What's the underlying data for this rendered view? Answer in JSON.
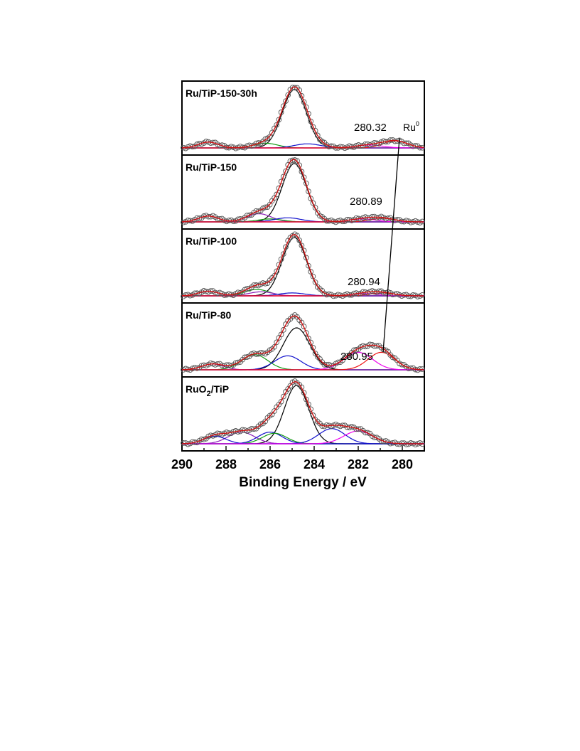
{
  "chart_data": {
    "type": "line",
    "xlabel": "Binding Energy / eV",
    "x_reversed": true,
    "xlim": [
      290,
      279
    ],
    "xticks": [
      "290",
      "288",
      "286",
      "284",
      "282",
      "280"
    ],
    "colors": {
      "data": "#555555",
      "envelope": "#cc1111",
      "main": "#000000",
      "green": "#119911",
      "blue": "#1111cc",
      "purple": "#8a1eb8",
      "magenta": "#ee00ee",
      "red": "#ee1111",
      "baseline": "#aa00aa"
    },
    "annotation": {
      "text": "Ru",
      "superscript": "0"
    },
    "panels": [
      {
        "label": "Ru/TiP-150-30h",
        "subscript": "",
        "label_suffix": "",
        "peak_label": "280.32",
        "ru0_position": 280.32,
        "components": [
          {
            "color": "main",
            "center": 284.9,
            "height": 1.0,
            "width": 0.55
          },
          {
            "color": "green",
            "center": 286.2,
            "height": 0.08,
            "width": 0.55
          },
          {
            "color": "blue",
            "center": 284.3,
            "height": 0.07,
            "width": 0.6
          },
          {
            "color": "purple",
            "center": 288.8,
            "height": 0.1,
            "width": 0.45
          },
          {
            "color": "magenta",
            "center": 281.5,
            "height": 0.05,
            "width": 0.6
          },
          {
            "color": "red",
            "center": 280.32,
            "height": 0.12,
            "width": 0.55
          }
        ]
      },
      {
        "label": "Ru/TiP-150",
        "subscript": "",
        "label_suffix": "",
        "peak_label": "280.89",
        "ru0_position": 280.89,
        "components": [
          {
            "color": "main",
            "center": 284.9,
            "height": 1.0,
            "width": 0.55
          },
          {
            "color": "purple",
            "center": 286.5,
            "height": 0.14,
            "width": 0.55
          },
          {
            "color": "green",
            "center": 286.0,
            "height": 0.05,
            "width": 0.55
          },
          {
            "color": "blue",
            "center": 285.2,
            "height": 0.07,
            "width": 0.6
          },
          {
            "color": "purple",
            "center": 288.8,
            "height": 0.1,
            "width": 0.45
          },
          {
            "color": "magenta",
            "center": 281.8,
            "height": 0.05,
            "width": 0.6
          },
          {
            "color": "red",
            "center": 280.89,
            "height": 0.06,
            "width": 0.55
          }
        ]
      },
      {
        "label": "Ru/TiP-100",
        "subscript": "",
        "label_suffix": "",
        "peak_label": "280.94",
        "ru0_position": 280.94,
        "components": [
          {
            "color": "main",
            "center": 284.9,
            "height": 1.0,
            "width": 0.55
          },
          {
            "color": "green",
            "center": 286.6,
            "height": 0.11,
            "width": 0.55
          },
          {
            "color": "purple",
            "center": 286.4,
            "height": 0.07,
            "width": 0.55
          },
          {
            "color": "blue",
            "center": 285.0,
            "height": 0.05,
            "width": 0.6
          },
          {
            "color": "purple",
            "center": 288.8,
            "height": 0.08,
            "width": 0.45
          },
          {
            "color": "magenta",
            "center": 281.7,
            "height": 0.04,
            "width": 0.6
          },
          {
            "color": "red",
            "center": 280.94,
            "height": 0.05,
            "width": 0.55
          }
        ]
      },
      {
        "label": "Ru/TiP-80",
        "subscript": "",
        "label_suffix": "",
        "peak_label": "280.95",
        "ru0_position": 280.95,
        "components": [
          {
            "color": "main",
            "center": 284.8,
            "height": 0.72,
            "width": 0.6
          },
          {
            "color": "green",
            "center": 286.7,
            "height": 0.26,
            "width": 0.6
          },
          {
            "color": "blue",
            "center": 285.2,
            "height": 0.24,
            "width": 0.6
          },
          {
            "color": "purple",
            "center": 288.6,
            "height": 0.1,
            "width": 0.5
          },
          {
            "color": "magenta",
            "center": 282.0,
            "height": 0.3,
            "width": 0.65
          },
          {
            "color": "red",
            "center": 280.95,
            "height": 0.3,
            "width": 0.6
          }
        ]
      },
      {
        "label": "RuO",
        "subscript": "2",
        "label_suffix": "/TiP",
        "peak_label": "",
        "ru0_position": null,
        "components": [
          {
            "color": "main",
            "center": 284.8,
            "height": 1.0,
            "width": 0.55
          },
          {
            "color": "purple",
            "center": 287.3,
            "height": 0.2,
            "width": 0.6
          },
          {
            "color": "blue",
            "center": 286.0,
            "height": 0.2,
            "width": 0.55
          },
          {
            "color": "green",
            "center": 285.8,
            "height": 0.18,
            "width": 0.55
          },
          {
            "color": "blue",
            "center": 288.5,
            "height": 0.13,
            "width": 0.5
          },
          {
            "color": "blue",
            "center": 283.2,
            "height": 0.26,
            "width": 0.6
          },
          {
            "color": "magenta",
            "center": 282.0,
            "height": 0.22,
            "width": 0.65
          }
        ]
      }
    ]
  }
}
